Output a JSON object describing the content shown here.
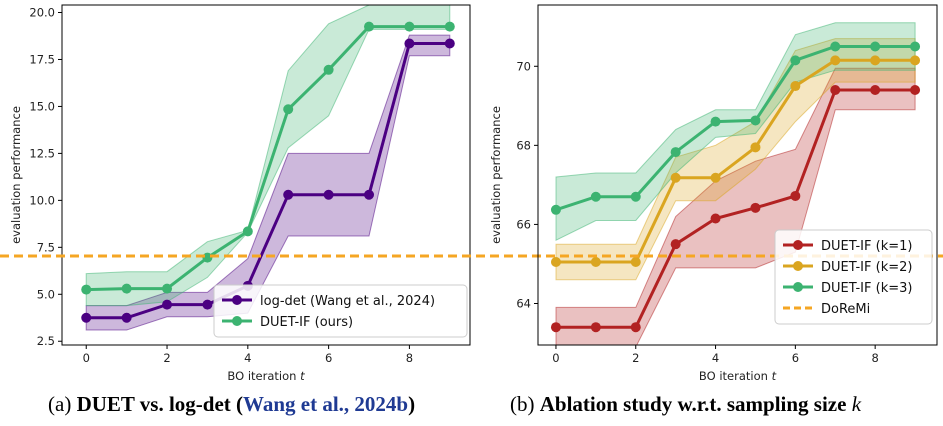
{
  "captions": [
    {
      "prefix": "(a) ",
      "bold_a": "DUET vs. log-det (",
      "ref": "Wang et al., 2024b",
      "bold_b": ")"
    },
    {
      "prefix": "(b) ",
      "bold_a": "Ablation study w.r.t. sampling size ",
      "var": "k"
    }
  ],
  "chart_data": [
    {
      "type": "line",
      "xlabel": "BO iteration t",
      "ylabel": "evaluation performance",
      "xlim": [
        -0.6,
        9.5
      ],
      "ylim": [
        2.3,
        20.4
      ],
      "xticks": [
        0,
        2,
        4,
        6,
        8
      ],
      "yticks": [
        2.5,
        5.0,
        7.5,
        10.0,
        12.5,
        15.0,
        17.5,
        20.0
      ],
      "ytick_labels": [
        "2.5",
        "5.0",
        "7.5",
        "10.0",
        "12.5",
        "15.0",
        "17.5",
        "20.0"
      ],
      "legend_position": "lower-right",
      "series": [
        {
          "name": "log-det (Wang et al., 2024)",
          "color": "#4b0082",
          "x": [
            0,
            1,
            2,
            3,
            4,
            5,
            6,
            7,
            8,
            9
          ],
          "y": [
            3.75,
            3.75,
            4.45,
            4.45,
            5.45,
            10.3,
            10.3,
            10.3,
            18.35,
            18.35
          ],
          "lower": [
            3.1,
            3.1,
            3.8,
            3.8,
            4.0,
            8.1,
            8.1,
            8.1,
            17.7,
            17.7
          ],
          "upper": [
            4.4,
            4.4,
            5.1,
            5.1,
            6.9,
            12.5,
            12.5,
            12.5,
            18.8,
            18.8
          ]
        },
        {
          "name": "DUET-IF (ours)",
          "color": "#3cb371",
          "x": [
            0,
            1,
            2,
            3,
            4,
            5,
            6,
            7,
            8,
            9
          ],
          "y": [
            5.25,
            5.3,
            5.3,
            6.95,
            8.35,
            14.85,
            16.95,
            19.25,
            19.25,
            19.25
          ],
          "lower": [
            4.4,
            4.4,
            4.6,
            5.9,
            8.3,
            12.8,
            14.5,
            19.1,
            19.1,
            19.1
          ],
          "upper": [
            6.1,
            6.2,
            6.2,
            7.8,
            8.4,
            16.9,
            19.4,
            20.4,
            20.4,
            20.4
          ]
        }
      ]
    },
    {
      "type": "line",
      "xlabel": "BO iteration t",
      "ylabel": "evaluation performance",
      "xlim": [
        -0.45,
        9.55
      ],
      "ylim": [
        62.95,
        71.55
      ],
      "xticks": [
        0,
        2,
        4,
        6,
        8
      ],
      "yticks": [
        64,
        66,
        68,
        70
      ],
      "ytick_labels": [
        "64",
        "66",
        "68",
        "70"
      ],
      "legend_position": "lower-right",
      "hline": {
        "name": "DoReMi",
        "y": 65.2,
        "color": "#f5a623"
      },
      "series": [
        {
          "name": "DUET-IF (k=1)",
          "color": "#b22222",
          "x": [
            0,
            1,
            2,
            3,
            4,
            5,
            6,
            7,
            8,
            9
          ],
          "y": [
            63.4,
            63.4,
            63.4,
            65.5,
            66.15,
            66.42,
            66.72,
            69.4,
            69.4,
            69.4
          ],
          "lower": [
            62.9,
            62.9,
            62.9,
            64.9,
            64.9,
            64.9,
            65.3,
            68.9,
            68.9,
            68.9
          ],
          "upper": [
            63.9,
            63.9,
            63.9,
            66.2,
            67.1,
            67.6,
            67.9,
            69.95,
            69.95,
            69.95
          ]
        },
        {
          "name": "DUET-IF (k=2)",
          "color": "#daa520",
          "x": [
            0,
            1,
            2,
            3,
            4,
            5,
            6,
            7,
            8,
            9
          ],
          "y": [
            65.05,
            65.05,
            65.05,
            67.18,
            67.18,
            67.95,
            69.5,
            70.15,
            70.15,
            70.15
          ],
          "lower": [
            64.6,
            64.6,
            64.6,
            66.6,
            66.6,
            67.4,
            68.6,
            69.6,
            69.6,
            69.6
          ],
          "upper": [
            65.5,
            65.5,
            65.5,
            67.7,
            68.0,
            68.6,
            70.4,
            70.7,
            70.7,
            70.7
          ]
        },
        {
          "name": "DUET-IF (k=3)",
          "color": "#3cb371",
          "x": [
            0,
            1,
            2,
            3,
            4,
            5,
            6,
            7,
            8,
            9
          ],
          "y": [
            66.37,
            66.7,
            66.7,
            67.83,
            68.6,
            68.63,
            70.15,
            70.5,
            70.5,
            70.5
          ],
          "lower": [
            65.6,
            66.1,
            66.1,
            67.3,
            68.2,
            68.3,
            69.6,
            69.9,
            69.9,
            69.9
          ],
          "upper": [
            67.2,
            67.3,
            67.3,
            68.4,
            68.9,
            68.9,
            70.8,
            71.1,
            71.1,
            71.1
          ]
        }
      ]
    }
  ]
}
